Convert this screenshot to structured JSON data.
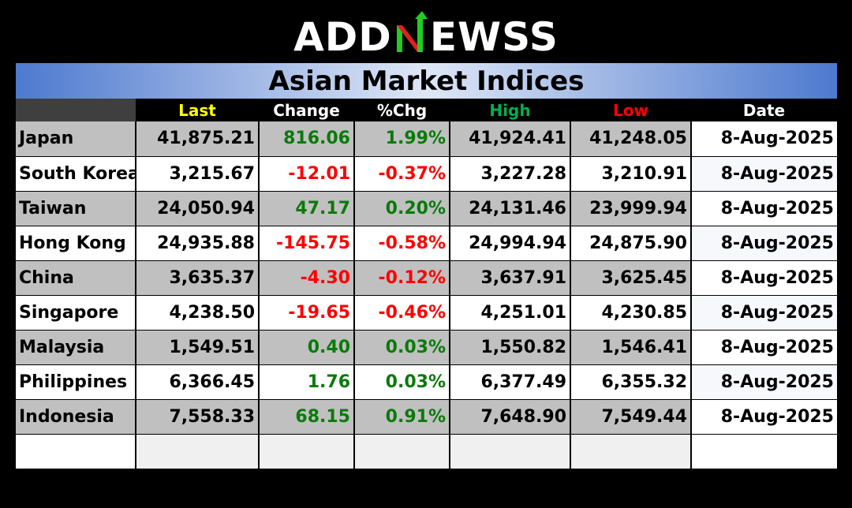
{
  "logo": {
    "prefix": "ADD",
    "suffix": "EWSS",
    "mark_color_green": "#22cc22",
    "mark_color_red": "#e02020"
  },
  "title": "Asian Market Indices",
  "headers": [
    "",
    "Last",
    "Change",
    "%Chg",
    "High",
    "Low",
    "Date"
  ],
  "header_colors": {
    "last": "#ffff00",
    "high": "#00b050",
    "low": "#ff0000"
  },
  "rows": [
    {
      "country": "Japan",
      "last": "41,875.21",
      "change": "816.06",
      "pct": "1.99%",
      "high": "41,924.41",
      "low": "41,248.05",
      "date": "8-Aug-2025",
      "direction": "up"
    },
    {
      "country": "South Korea",
      "last": "3,215.67",
      "change": "-12.01",
      "pct": "-0.37%",
      "high": "3,227.28",
      "low": "3,210.91",
      "date": "8-Aug-2025",
      "direction": "down"
    },
    {
      "country": "Taiwan",
      "last": "24,050.94",
      "change": "47.17",
      "pct": "0.20%",
      "high": "24,131.46",
      "low": "23,999.94",
      "date": "8-Aug-2025",
      "direction": "up"
    },
    {
      "country": "Hong Kong",
      "last": "24,935.88",
      "change": "-145.75",
      "pct": "-0.58%",
      "high": "24,994.94",
      "low": "24,875.90",
      "date": "8-Aug-2025",
      "direction": "down"
    },
    {
      "country": "China",
      "last": "3,635.37",
      "change": "-4.30",
      "pct": "-0.12%",
      "high": "3,637.91",
      "low": "3,625.45",
      "date": "8-Aug-2025",
      "direction": "down"
    },
    {
      "country": "Singapore",
      "last": "4,238.50",
      "change": "-19.65",
      "pct": "-0.46%",
      "high": "4,251.01",
      "low": "4,230.85",
      "date": "8-Aug-2025",
      "direction": "down"
    },
    {
      "country": "Malaysia",
      "last": "1,549.51",
      "change": "0.40",
      "pct": "0.03%",
      "high": "1,550.82",
      "low": "1,546.41",
      "date": "8-Aug-2025",
      "direction": "up"
    },
    {
      "country": "Philippines",
      "last": "6,366.45",
      "change": "1.76",
      "pct": "0.03%",
      "high": "6,377.49",
      "low": "6,355.32",
      "date": "8-Aug-2025",
      "direction": "up"
    },
    {
      "country": "Indonesia",
      "last": "7,558.33",
      "change": "68.15",
      "pct": "0.91%",
      "high": "7,648.90",
      "low": "7,549.44",
      "date": "8-Aug-2025",
      "direction": "up"
    }
  ],
  "colors": {
    "positive": "#0a7a0a",
    "negative": "#ff0000",
    "row_grey": "#c0c0c0",
    "row_white": "#ffffff"
  }
}
